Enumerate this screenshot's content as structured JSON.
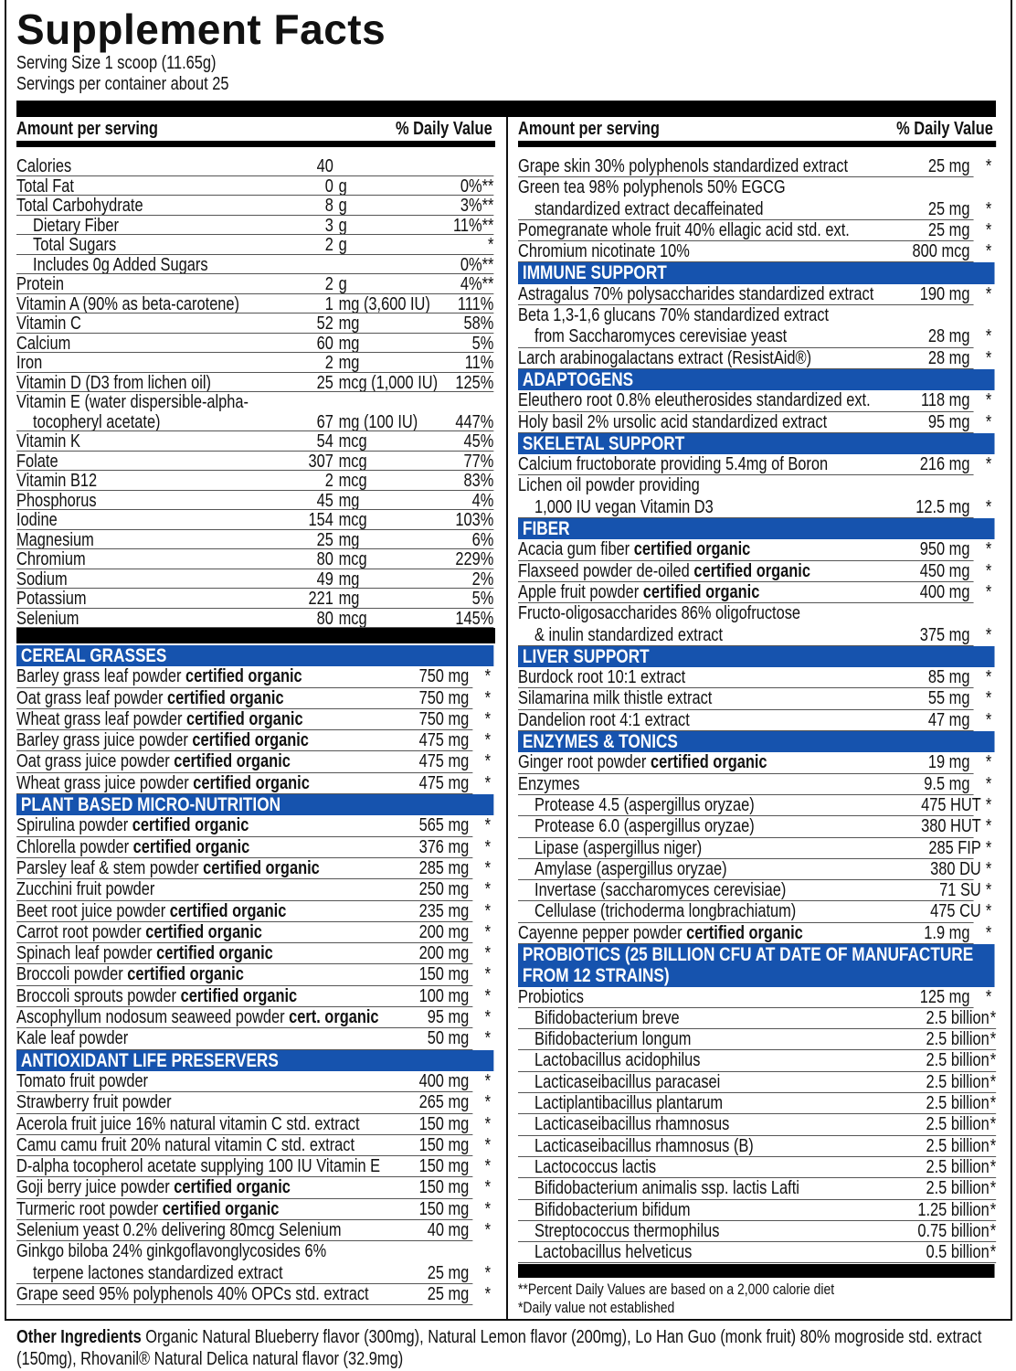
{
  "title": "Supplement Facts",
  "serving_size": "Serving Size 1 scoop (11.65g)",
  "servings_per_container": "Servings per container about 25",
  "header": {
    "amount": "Amount per serving",
    "dv": "% Daily Value"
  },
  "colors": {
    "section_blue": "#1653ae",
    "bar": "#000000"
  },
  "nutrients": [
    {
      "name": "Calories",
      "num": "40",
      "unit": "",
      "dv": ""
    },
    {
      "name": "Total Fat",
      "num": "0",
      "unit": "g",
      "dv": "0%**"
    },
    {
      "name": "Total Carbohydrate",
      "num": "8",
      "unit": "g",
      "dv": "3%**"
    },
    {
      "name": "Dietary Fiber",
      "num": "3",
      "unit": "g",
      "dv": "11%**",
      "indent": true
    },
    {
      "name": "Total Sugars",
      "num": "2",
      "unit": "g",
      "dv": "*",
      "indent": true
    },
    {
      "name": "Includes 0g Added Sugars",
      "num": "",
      "unit": "",
      "dv": "0%**",
      "indent": true
    },
    {
      "name": "Protein",
      "num": "2",
      "unit": "g",
      "dv": "4%**"
    },
    {
      "name": "Vitamin A (90% as beta-carotene)",
      "num": "1",
      "unit": "mg (3,600 IU)",
      "dv": "111%"
    },
    {
      "name": "Vitamin C",
      "num": "52",
      "unit": "mg",
      "dv": "58%"
    },
    {
      "name": "Calcium",
      "num": "60",
      "unit": "mg",
      "dv": "5%"
    },
    {
      "name": "Iron",
      "num": "2",
      "unit": "mg",
      "dv": "11%"
    },
    {
      "name": "Vitamin D (D3 from lichen oil)",
      "num": "25",
      "unit": "mcg (1,000 IU)",
      "dv": "125%"
    },
    {
      "name": "Vitamin E (water dispersible-alpha-",
      "name2": "tocopheryl acetate)",
      "num": "67",
      "unit": "mg (100 IU)",
      "dv": "447%"
    },
    {
      "name": "Vitamin K",
      "num": "54",
      "unit": "mcg",
      "dv": "45%"
    },
    {
      "name": "Folate",
      "num": "307",
      "unit": "mcg",
      "dv": "77%"
    },
    {
      "name": "Vitamin B12",
      "num": "2",
      "unit": "mcg",
      "dv": "83%"
    },
    {
      "name": "Phosphorus",
      "num": "45",
      "unit": "mg",
      "dv": "4%"
    },
    {
      "name": "Iodine",
      "num": "154",
      "unit": "mcg",
      "dv": "103%"
    },
    {
      "name": "Magnesium",
      "num": "25",
      "unit": "mg",
      "dv": "6%"
    },
    {
      "name": "Chromium",
      "num": "80",
      "unit": "mcg",
      "dv": "229%"
    },
    {
      "name": "Sodium",
      "num": "49",
      "unit": "mg",
      "dv": "2%"
    },
    {
      "name": "Potassium",
      "num": "221",
      "unit": "mg",
      "dv": "5%"
    },
    {
      "name": "Selenium",
      "num": "80",
      "unit": "mcg",
      "dv": "145%"
    }
  ],
  "left_sections": [
    {
      "title": "CEREAL GRASSES",
      "items": [
        {
          "name": "Barley grass leaf powder",
          "bold": "certified organic",
          "amt": "750 mg",
          "star": "*"
        },
        {
          "name": "Oat grass leaf powder",
          "bold": "certified organic",
          "amt": "750 mg",
          "star": "*"
        },
        {
          "name": "Wheat grass leaf powder",
          "bold": "certified organic",
          "amt": "750 mg",
          "star": "*"
        },
        {
          "name": "Barley grass juice powder",
          "bold": "certified organic",
          "amt": "475 mg",
          "star": "*"
        },
        {
          "name": "Oat grass juice powder",
          "bold": "certified organic",
          "amt": "475 mg",
          "star": "*"
        },
        {
          "name": "Wheat grass juice powder",
          "bold": "certified organic",
          "amt": "475 mg",
          "star": "*"
        }
      ]
    },
    {
      "title": "PLANT BASED MICRO-NUTRITION",
      "items": [
        {
          "name": "Spirulina powder",
          "bold": "certified organic",
          "amt": "565 mg",
          "star": "*"
        },
        {
          "name": "Chlorella powder",
          "bold": "certified organic",
          "amt": "376 mg",
          "star": "*"
        },
        {
          "name": "Parsley leaf & stem powder",
          "bold": "certified organic",
          "amt": "285 mg",
          "star": "*"
        },
        {
          "name": "Zucchini fruit powder",
          "amt": "250 mg",
          "star": "*"
        },
        {
          "name": "Beet root juice powder",
          "bold": "certified organic",
          "amt": "235 mg",
          "star": "*"
        },
        {
          "name": "Carrot root powder",
          "bold": "certified organic",
          "amt": "200 mg",
          "star": "*"
        },
        {
          "name": "Spinach leaf powder",
          "bold": "certified organic",
          "amt": "200 mg",
          "star": "*"
        },
        {
          "name": "Broccoli powder",
          "bold": "certified organic",
          "amt": "150 mg",
          "star": "*"
        },
        {
          "name": "Broccoli sprouts powder",
          "bold": "certified organic",
          "amt": "100 mg",
          "star": "*"
        },
        {
          "name": "Ascophyllum nodosum seaweed powder",
          "bold": "cert. organic",
          "amt": "95 mg",
          "star": "*"
        },
        {
          "name": "Kale leaf powder",
          "amt": "50 mg",
          "star": "*"
        }
      ]
    },
    {
      "title": "ANTIOXIDANT LIFE PRESERVERS",
      "items": [
        {
          "name": "Tomato fruit powder",
          "amt": "400 mg",
          "star": "*"
        },
        {
          "name": "Strawberry fruit powder",
          "amt": "265 mg",
          "star": "*"
        },
        {
          "name": "Acerola fruit juice 16% natural vitamin C std. extract",
          "amt": "150 mg",
          "star": "*"
        },
        {
          "name": "Camu camu fruit 20% natural vitamin C std. extract",
          "amt": "150 mg",
          "star": "*"
        },
        {
          "name": "D-alpha tocopherol acetate supplying 100 IU Vitamin E",
          "amt": "150 mg",
          "star": "*"
        },
        {
          "name": "Goji berry juice powder",
          "bold": "certified organic",
          "amt": "150 mg",
          "star": "*"
        },
        {
          "name": "Turmeric root powder",
          "bold": "certified organic",
          "amt": "150 mg",
          "star": "*"
        },
        {
          "name": "Selenium yeast 0.2% delivering 80mcg Selenium",
          "amt": "40 mg",
          "star": "*"
        },
        {
          "name": "Ginkgo biloba 24% ginkgoflavonglycosides 6%",
          "name2": "terpene lactones standardized extract",
          "amt": "25 mg",
          "star": "*"
        },
        {
          "name": "Grape seed 95% polyphenols 40% OPCs std. extract",
          "amt": "25 mg",
          "star": "*"
        }
      ]
    }
  ],
  "right_sections": [
    {
      "title": "",
      "items": [
        {
          "name": "Grape skin 30% polyphenols standardized extract",
          "amt": "25 mg",
          "star": "*"
        },
        {
          "name": "Green tea 98% polyphenols 50% EGCG",
          "name2": "standardized extract decaffeinated",
          "amt": "25 mg",
          "star": "*"
        },
        {
          "name": "Pomegranate whole fruit 40% ellagic acid std. ext.",
          "amt": "25 mg",
          "star": "*"
        },
        {
          "name": "Chromium nicotinate 10%",
          "amt": "800 mcg",
          "star": "*"
        }
      ]
    },
    {
      "title": "IMMUNE SUPPORT",
      "items": [
        {
          "name": "Astragalus 70% polysaccharides standardized extract",
          "amt": "190 mg",
          "star": "*"
        },
        {
          "name": "Beta 1,3-1,6 glucans 70% standardized extract",
          "name2": "from Saccharomyces cerevisiae yeast",
          "amt": "28 mg",
          "star": "*"
        },
        {
          "name": "Larch arabinogalactans extract (ResistAid®)",
          "amt": "28 mg",
          "star": "*"
        }
      ]
    },
    {
      "title": "ADAPTOGENS",
      "items": [
        {
          "name": "Eleuthero root 0.8% eleutherosides standardized ext.",
          "amt": "118 mg",
          "star": "*"
        },
        {
          "name": "Holy basil 2% ursolic acid standardized extract",
          "amt": "95 mg",
          "star": "*"
        }
      ]
    },
    {
      "title": "SKELETAL SUPPORT",
      "items": [
        {
          "name": "Calcium fructoborate providing 5.4mg of Boron",
          "amt": "216 mg",
          "star": "*"
        },
        {
          "name": "Lichen oil powder providing",
          "name2": "1,000 IU vegan Vitamin D3",
          "amt": "12.5 mg",
          "star": "*"
        }
      ]
    },
    {
      "title": "FIBER",
      "items": [
        {
          "name": "Acacia gum fiber",
          "bold": "certified organic",
          "amt": "950 mg",
          "star": "*"
        },
        {
          "name": "Flaxseed powder de-oiled",
          "bold": "certified organic",
          "amt": "450 mg",
          "star": "*"
        },
        {
          "name": "Apple fruit powder",
          "bold": "certified organic",
          "amt": "400 mg",
          "star": "*"
        },
        {
          "name": "Fructo-oligosaccharides 86% oligofructose",
          "name2": "& inulin standardized extract",
          "amt": "375 mg",
          "star": "*"
        }
      ]
    },
    {
      "title": "LIVER SUPPORT",
      "items": [
        {
          "name": "Burdock root 10:1 extract",
          "amt": "85 mg",
          "star": "*"
        },
        {
          "name": "Silamarina milk thistle extract",
          "amt": "55 mg",
          "star": "*"
        },
        {
          "name": "Dandelion root 4:1 extract",
          "amt": "47 mg",
          "star": "*"
        }
      ]
    },
    {
      "title": "ENZYMES & TONICS",
      "items": [
        {
          "name": "Ginger root powder",
          "bold": "certified organic",
          "amt": "19 mg",
          "star": "*"
        },
        {
          "name": "Enzymes",
          "amt": "9.5 mg",
          "star": "*"
        },
        {
          "name": "Protease 4.5 (aspergillus oryzae)",
          "amt": "475 HUT",
          "star": "*",
          "indent": true,
          "style": "mid"
        },
        {
          "name": "Protease 6.0 (aspergillus oryzae)",
          "amt": "380 HUT",
          "star": "*",
          "indent": true,
          "style": "mid"
        },
        {
          "name": "Lipase (aspergillus niger)",
          "amt": "285 FIP",
          "star": "*",
          "indent": true,
          "style": "mid"
        },
        {
          "name": "Amylase (aspergillus oryzae)",
          "amt": "380 DU",
          "star": "*",
          "indent": true,
          "style": "mid"
        },
        {
          "name": "Invertase (saccharomyces cerevisiae)",
          "amt": "71 SU",
          "star": "*",
          "indent": true,
          "style": "mid"
        },
        {
          "name": "Cellulase (trichoderma longbrachiatum)",
          "amt": "475 CU",
          "star": "*",
          "indent": true,
          "style": "mid"
        },
        {
          "name": "Cayenne pepper powder",
          "bold": "certified organic",
          "amt": "1.9 mg",
          "star": "*"
        }
      ]
    },
    {
      "title": "PROBIOTICS (25 BILLION CFU AT DATE OF MANUFACTURE FROM 12 STRAINS)",
      "double": true,
      "items": [
        {
          "name": "Probiotics",
          "amt": "125 mg",
          "star": "*"
        },
        {
          "name": "Bifidobacterium breve",
          "amt": "2.5 billion",
          "star": "*",
          "indent": true,
          "style": "billion"
        },
        {
          "name": "Bifidobacterium longum",
          "amt": "2.5 billion",
          "star": "*",
          "indent": true,
          "style": "billion"
        },
        {
          "name": "Lactobacillus acidophilus",
          "amt": "2.5 billion",
          "star": "*",
          "indent": true,
          "style": "billion"
        },
        {
          "name": "Lacticaseibacillus paracasei",
          "amt": "2.5 billion",
          "star": "*",
          "indent": true,
          "style": "billion"
        },
        {
          "name": "Lactiplantibacillus plantarum",
          "amt": "2.5 billion",
          "star": "*",
          "indent": true,
          "style": "billion"
        },
        {
          "name": "Lacticaseibacillus rhamnosus",
          "amt": "2.5 billion",
          "star": "*",
          "indent": true,
          "style": "billion"
        },
        {
          "name": "Lacticaseibacillus rhamnosus (B)",
          "amt": "2.5 billion",
          "star": "*",
          "indent": true,
          "style": "billion"
        },
        {
          "name": "Lactococcus lactis",
          "amt": "2.5 billion",
          "star": "*",
          "indent": true,
          "style": "billion"
        },
        {
          "name": "Bifidobacterium animalis ssp. lactis Lafti",
          "amt": "2.5 billion",
          "star": "*",
          "indent": true,
          "style": "billion"
        },
        {
          "name": "Bifidobacterium bifidum",
          "amt": "1.25 billion",
          "star": "*",
          "indent": true,
          "style": "billion"
        },
        {
          "name": "Streptococcus thermophilus",
          "amt": "0.75 billion",
          "star": "*",
          "indent": true,
          "style": "billion"
        },
        {
          "name": "Lactobacillus helveticus",
          "amt": "0.5 billion",
          "star": "*",
          "indent": true,
          "style": "billion"
        }
      ]
    }
  ],
  "footnotes": [
    "**Percent Daily Values are based on a 2,000 calorie diet",
    "*Daily value not established"
  ],
  "other_ingredients": {
    "label": "Other Ingredients",
    "text": "Organic Natural Blueberry flavor (300mg), Natural Lemon flavor (200mg), Lo Han Guo (monk fruit) 80% mogroside std. extract (150mg), Rhovanil® Natural Delica natural flavor (32.9mg)"
  }
}
